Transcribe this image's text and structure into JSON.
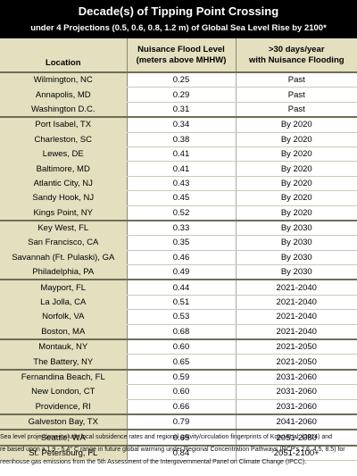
{
  "title": "Decade(s) of Tipping Point Crossing",
  "subtitle": "under 4 Projections (0.5, 0.6, 0.8, 1.2 m) of Global Sea Level Rise by 2100*",
  "headers": {
    "location": "Location",
    "flood_level_line1": "Nuisance Flood Level",
    "flood_level_line2": "(meters above MHHW)",
    "days_line1": ">30 days/year",
    "days_line2": "with Nuisance Flooding"
  },
  "rows": [
    {
      "location": "Wilmington, NC",
      "level": "0.25",
      "decade": "Past"
    },
    {
      "location": "Annapolis, MD",
      "level": "0.29",
      "decade": "Past"
    },
    {
      "location": "Washington D.C.",
      "level": "0.31",
      "decade": "Past"
    },
    {
      "location": "Port Isabel, TX",
      "level": "0.34",
      "decade": "By 2020"
    },
    {
      "location": "Charleston, SC",
      "level": "0.38",
      "decade": "By 2020"
    },
    {
      "location": "Lewes, DE",
      "level": "0.41",
      "decade": "By 2020"
    },
    {
      "location": "Baltimore, MD",
      "level": "0.41",
      "decade": "By 2020"
    },
    {
      "location": "Atlantic City, NJ",
      "level": "0.43",
      "decade": "By 2020"
    },
    {
      "location": "Sandy Hook, NJ",
      "level": "0.45",
      "decade": "By 2020"
    },
    {
      "location": "Kings Point, NY",
      "level": "0.52",
      "decade": "By 2020"
    },
    {
      "location": "Key West, FL",
      "level": "0.33",
      "decade": "By 2030"
    },
    {
      "location": "San Francisco, CA",
      "level": "0.35",
      "decade": "By 2030"
    },
    {
      "location": "Savannah (Ft. Pulaski), GA",
      "level": "0.46",
      "decade": "By 2030"
    },
    {
      "location": "Philadelphia, PA",
      "level": "0.49",
      "decade": "By 2030"
    },
    {
      "location": "Mayport, FL",
      "level": "0.44",
      "decade": "2021-2040"
    },
    {
      "location": "La Jolla, CA",
      "level": "0.51",
      "decade": "2021-2040"
    },
    {
      "location": "Norfolk, VA",
      "level": "0.53",
      "decade": "2021-2040"
    },
    {
      "location": "Boston, MA",
      "level": "0.68",
      "decade": "2021-2040"
    },
    {
      "location": "Montauk, NY",
      "level": "0.60",
      "decade": "2021-2050"
    },
    {
      "location": "The Battery, NY",
      "level": "0.65",
      "decade": "2021-2050"
    },
    {
      "location": "Fernandina Beach, FL",
      "level": "0.59",
      "decade": "2031-2060"
    },
    {
      "location": "New London, CT",
      "level": "0.60",
      "decade": "2031-2060"
    },
    {
      "location": "Providence, RI",
      "level": "0.66",
      "decade": "2031-2060"
    },
    {
      "location": "Galveston Bay, TX",
      "level": "0.79",
      "decade": "2041-2060"
    },
    {
      "location": "Seattle, WA",
      "level": "0.65",
      "decade": "2051-2080"
    },
    {
      "location": "St. Petersburg, FL",
      "level": "0.84",
      "decade": "2051-2100+"
    }
  ],
  "footnote": {
    "line1": "Sea level projections include local subsidence rates and regional gravity/circulation fingerprints of Kopp et al. (2014) and",
    "line2": "re based upon a 1.9 - 5.4° C range in future global warming under Regional Concentration Pathways (RCP's 2.6, 4.5, 8.5) for",
    "line3": "reenhouse gas emissions from the 5th Assessment of the Intergovernmental Panel on Climate Change (IPCC)."
  }
}
